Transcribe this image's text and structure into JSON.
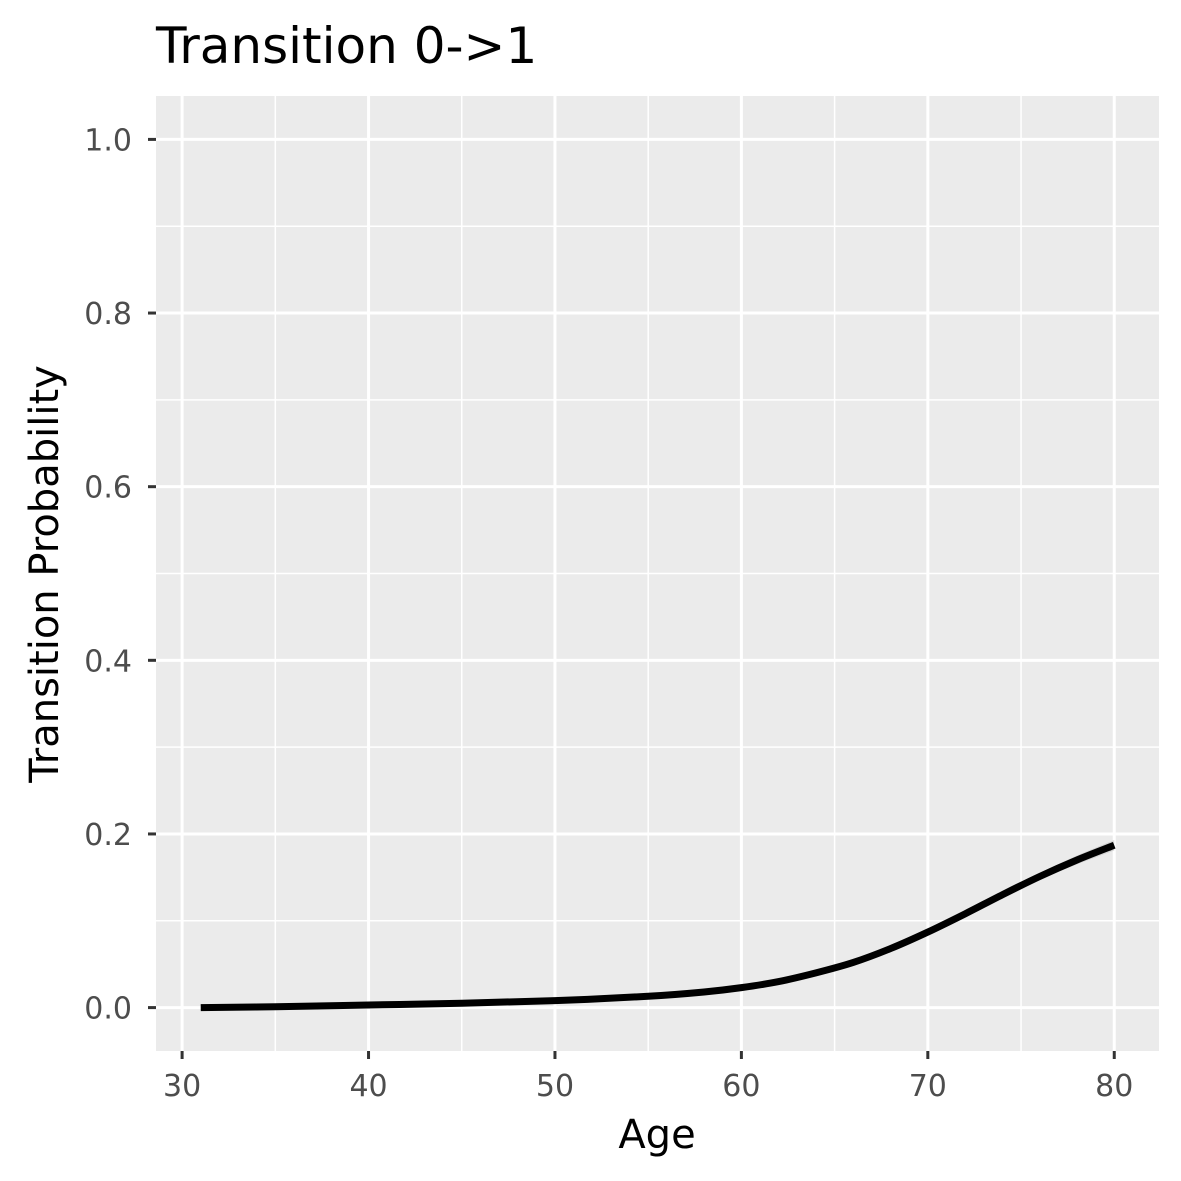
{
  "chart_data": {
    "type": "line",
    "title": "Transition 0->1",
    "xlabel": "Age",
    "ylabel": "Transition Probability",
    "xlim": [
      28.6,
      82.4
    ],
    "ylim": [
      -0.05,
      1.05
    ],
    "x_ticks": [
      30,
      40,
      50,
      60,
      70,
      80
    ],
    "x_tick_labels": [
      "30",
      "40",
      "50",
      "60",
      "70",
      "80"
    ],
    "y_ticks": [
      0.0,
      0.2,
      0.4,
      0.6,
      0.8,
      1.0
    ],
    "y_tick_labels": [
      "0.0",
      "0.2",
      "0.4",
      "0.6",
      "0.8",
      "1.0"
    ],
    "grid": true,
    "background_color": "#ebebeb",
    "line_color": "#000000",
    "band_color": "#bdbdbd",
    "series": [
      {
        "x": [
          31,
          35,
          40,
          45,
          50,
          55,
          58,
          60,
          62,
          64,
          66,
          68,
          70,
          72,
          74,
          76,
          78,
          80
        ],
        "values": [
          0.0,
          0.001,
          0.003,
          0.005,
          0.008,
          0.013,
          0.018,
          0.023,
          0.03,
          0.04,
          0.052,
          0.068,
          0.087,
          0.108,
          0.13,
          0.151,
          0.17,
          0.187
        ],
        "lower": [
          0.0,
          0.001,
          0.002,
          0.004,
          0.007,
          0.012,
          0.017,
          0.022,
          0.029,
          0.038,
          0.05,
          0.066,
          0.085,
          0.106,
          0.127,
          0.147,
          0.165,
          0.181
        ],
        "upper": [
          0.0,
          0.001,
          0.003,
          0.006,
          0.009,
          0.014,
          0.019,
          0.024,
          0.031,
          0.042,
          0.054,
          0.07,
          0.089,
          0.11,
          0.133,
          0.155,
          0.175,
          0.193
        ]
      }
    ]
  }
}
